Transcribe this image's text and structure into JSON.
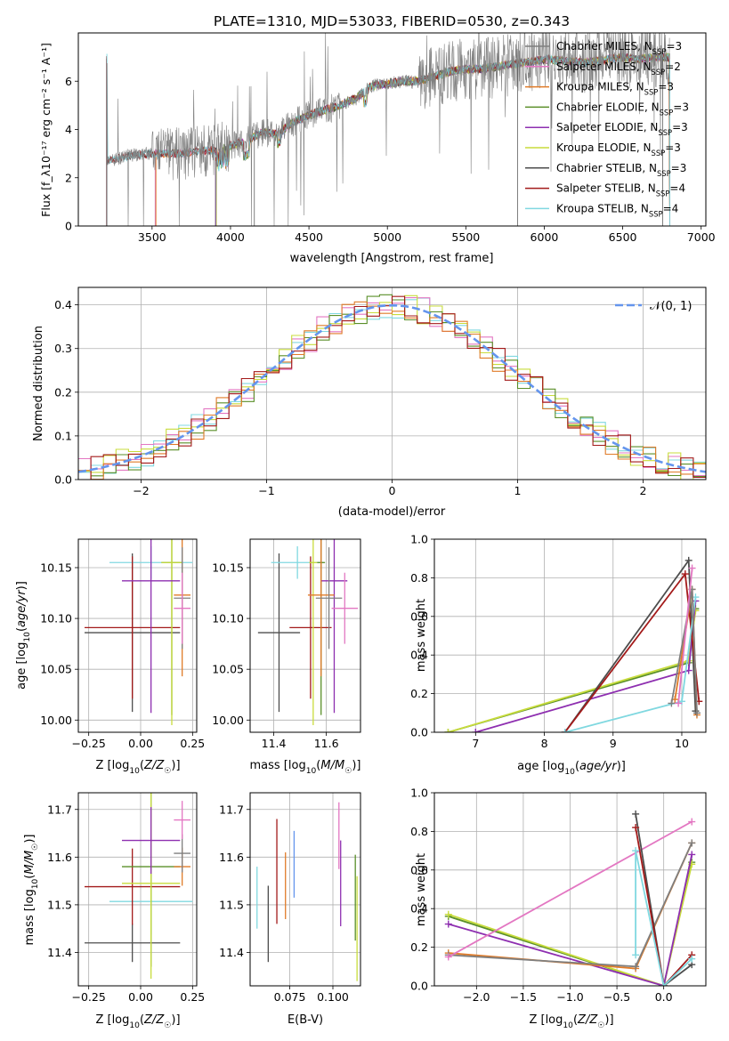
{
  "figure_title": "PLATE=1310, MJD=53033, FIBERID=0530, z=0.343",
  "colors": {
    "chabrier_miles": "#7f7f7f",
    "salpeter_miles": "#e377c2",
    "kroupa_miles": "#e07b28",
    "chabrier_elodie": "#5a8f29",
    "salpeter_elodie": "#8e2fb0",
    "kroupa_elodie": "#c8dc3c",
    "chabrier_stelib": "#4d4d4d",
    "salpeter_stelib": "#a31a1a",
    "kroupa_stelib": "#80d8e0",
    "normal_curve": "#6495ed",
    "data_spectrum": "#808080"
  },
  "chart_data": [
    {
      "id": "spectrum",
      "type": "line",
      "title": "PLATE=1310, MJD=53033, FIBERID=0530, z=0.343",
      "xlabel": "wavelength [Angstrom, rest frame]",
      "ylabel": "Flux [f_λ10⁻¹⁷ erg cm⁻² s⁻¹ A⁻¹]",
      "xlim": [
        3030,
        7030
      ],
      "ylim": [
        0,
        8
      ],
      "xticks": [
        3500,
        4000,
        4500,
        5000,
        5500,
        6000,
        6500,
        7000
      ],
      "yticks": [
        0,
        2,
        4,
        6
      ],
      "grid": false,
      "legend_position": "top-right",
      "continuum": [
        [
          3215,
          2.7
        ],
        [
          3300,
          2.85
        ],
        [
          3400,
          2.95
        ],
        [
          3500,
          3.0
        ],
        [
          3600,
          3.0
        ],
        [
          3700,
          3.0
        ],
        [
          3800,
          3.1
        ],
        [
          3900,
          3.15
        ],
        [
          4000,
          3.35
        ],
        [
          4100,
          3.5
        ],
        [
          4200,
          3.9
        ],
        [
          4300,
          3.8
        ],
        [
          4400,
          4.3
        ],
        [
          4500,
          4.6
        ],
        [
          4600,
          4.8
        ],
        [
          4700,
          5.0
        ],
        [
          4800,
          5.3
        ],
        [
          4900,
          5.8
        ],
        [
          5000,
          5.9
        ],
        [
          5100,
          6.0
        ],
        [
          5200,
          6.0
        ],
        [
          5300,
          6.2
        ],
        [
          5400,
          6.4
        ],
        [
          5500,
          6.5
        ],
        [
          5600,
          6.5
        ],
        [
          5700,
          6.6
        ],
        [
          5800,
          6.7
        ],
        [
          5900,
          6.8
        ],
        [
          6000,
          6.9
        ],
        [
          6100,
          6.85
        ],
        [
          6200,
          6.8
        ],
        [
          6300,
          6.8
        ],
        [
          6400,
          6.9
        ],
        [
          6500,
          7.0
        ],
        [
          6600,
          6.9
        ],
        [
          6700,
          7.0
        ],
        [
          6800,
          7.0
        ]
      ],
      "series": [
        {
          "name": "Chabrier MILES, N_SSP=3",
          "color": "#7f7f7f",
          "start": 3520
        },
        {
          "name": "Salpeter MILES, N_SSP=2",
          "color": "#e377c2",
          "start": 3520
        },
        {
          "name": "Kroupa MILES, N_SSP=3",
          "color": "#e07b28",
          "start": 3525
        },
        {
          "name": "Chabrier ELODIE, N_SSP=3",
          "color": "#5a8f29",
          "start": 3905
        },
        {
          "name": "Salpeter ELODIE, N_SSP=3",
          "color": "#8e2fb0",
          "start": 3905
        },
        {
          "name": "Kroupa ELODIE, N_SSP=3",
          "color": "#c8dc3c",
          "start": 3910
        },
        {
          "name": "Chabrier STELIB, N_SSP=3",
          "color": "#4d4d4d",
          "start": 3210
        },
        {
          "name": "Salpeter STELIB, N_SSP=4",
          "color": "#a31a1a",
          "start": 3210
        },
        {
          "name": "Kroupa STELIB, N_SSP=4",
          "color": "#80d8e0",
          "start": 3212
        }
      ]
    },
    {
      "id": "residuals",
      "type": "histogram",
      "xlabel": "(data-model)/error",
      "ylabel": "Normed distribution",
      "xlim": [
        -2.5,
        2.5
      ],
      "ylim": [
        0,
        0.44
      ],
      "xticks": [
        -2,
        -1,
        0,
        1,
        2
      ],
      "yticks": [
        0.0,
        0.1,
        0.2,
        0.3,
        0.4
      ],
      "grid": true,
      "legend_position": "top-right",
      "legend": "𝒩(0, 1)",
      "bin_width": 0.1
    },
    {
      "id": "age_vs_Z",
      "type": "errorbar",
      "xlabel": "Z [log10(Z/Z☉)]",
      "ylabel": "age  [log10(age/yr)]",
      "xlim": [
        -0.3,
        0.27
      ],
      "ylim": [
        9.988,
        10.178
      ],
      "xticks": [
        -0.25,
        0.0,
        0.25
      ],
      "yticks": [
        10.0,
        10.05,
        10.1,
        10.15
      ],
      "grid": true,
      "points": [
        {
          "color": "#4d4d4d",
          "x": -0.04,
          "xerr": 0.23,
          "y": 10.086,
          "yerr": 0.078
        },
        {
          "color": "#80d8e0",
          "x": 0.05,
          "xerr": 0.2,
          "y": 10.155,
          "yerr": 0.016
        },
        {
          "color": "#a31a1a",
          "x": -0.04,
          "xerr": 0.23,
          "y": 10.091,
          "yerr": 0.07
        },
        {
          "color": "#5a8f29",
          "x": 0.15,
          "xerr": 0.05,
          "y": 10.155,
          "yerr": 0.15
        },
        {
          "color": "#c8dc3c",
          "x": 0.15,
          "xerr": 0.05,
          "y": 10.155,
          "yerr": 0.16
        },
        {
          "color": "#8e2fb0",
          "x": 0.05,
          "xerr": 0.14,
          "y": 10.137,
          "yerr": 0.13
        },
        {
          "color": "#e07b28",
          "x": 0.2,
          "xerr": 0.04,
          "y": 10.123,
          "yerr": 0.08
        },
        {
          "color": "#7f7f7f",
          "x": 0.2,
          "xerr": 0.04,
          "y": 10.12,
          "yerr": 0.05
        },
        {
          "color": "#e377c2",
          "x": 0.2,
          "xerr": 0.04,
          "y": 10.11,
          "yerr": 0.035
        }
      ]
    },
    {
      "id": "age_vs_mass",
      "type": "errorbar",
      "xlabel": "mass [log10(M/M☉)]",
      "xlim": [
        11.31,
        11.73
      ],
      "ylim": [
        9.988,
        10.178
      ],
      "xticks": [
        11.4,
        11.6
      ],
      "yticks": [
        10.0,
        10.05,
        10.1,
        10.15
      ],
      "grid": true,
      "points": [
        {
          "color": "#4d4d4d",
          "x": 11.42,
          "xerr": 0.08,
          "y": 10.086,
          "yerr": 0.078
        },
        {
          "color": "#80d8e0",
          "x": 11.49,
          "xerr": 0.1,
          "y": 10.155,
          "yerr": 0.016
        },
        {
          "color": "#a31a1a",
          "x": 11.54,
          "xerr": 0.08,
          "y": 10.091,
          "yerr": 0.07
        },
        {
          "color": "#5a8f29",
          "x": 11.58,
          "xerr": 0.015,
          "y": 10.155,
          "yerr": 0.15
        },
        {
          "color": "#c8dc3c",
          "x": 11.55,
          "xerr": 0.015,
          "y": 10.155,
          "yerr": 0.16
        },
        {
          "color": "#8e2fb0",
          "x": 11.63,
          "xerr": 0.05,
          "y": 10.137,
          "yerr": 0.13
        },
        {
          "color": "#e07b28",
          "x": 11.58,
          "xerr": 0.05,
          "y": 10.123,
          "yerr": 0.08
        },
        {
          "color": "#7f7f7f",
          "x": 11.61,
          "xerr": 0.05,
          "y": 10.12,
          "yerr": 0.05
        },
        {
          "color": "#e377c2",
          "x": 11.67,
          "xerr": 0.05,
          "y": 10.11,
          "yerr": 0.035
        }
      ]
    },
    {
      "id": "mass_weight_vs_age",
      "type": "line",
      "xlabel": "age  [log10(age/yr)]",
      "ylabel": "mass weight",
      "xlim": [
        6.4,
        10.35
      ],
      "ylim": [
        0,
        1
      ],
      "xticks": [
        7,
        8,
        9,
        10
      ],
      "yticks": [
        0.0,
        0.2,
        0.4,
        0.6,
        0.8,
        1.0
      ],
      "grid": true,
      "series": [
        {
          "color": "#5a8f29",
          "points": [
            [
              6.6,
              0.0
            ],
            [
              10.1,
              0.36
            ],
            [
              10.2,
              0.64
            ]
          ]
        },
        {
          "color": "#c8dc3c",
          "points": [
            [
              6.6,
              0.0
            ],
            [
              10.1,
              0.37
            ],
            [
              10.2,
              0.63
            ]
          ]
        },
        {
          "color": "#8e2fb0",
          "points": [
            [
              7.0,
              0.0
            ],
            [
              10.1,
              0.32
            ],
            [
              10.2,
              0.68
            ]
          ]
        },
        {
          "color": "#4d4d4d",
          "points": [
            [
              8.3,
              0.0
            ],
            [
              10.1,
              0.89
            ],
            [
              10.2,
              0.11
            ]
          ]
        },
        {
          "color": "#a31a1a",
          "points": [
            [
              8.3,
              0.0
            ],
            [
              10.05,
              0.82
            ],
            [
              10.25,
              0.16
            ]
          ]
        },
        {
          "color": "#80d8e0",
          "points": [
            [
              8.3,
              0.0
            ],
            [
              10.0,
              0.16
            ],
            [
              10.2,
              0.7
            ]
          ]
        },
        {
          "color": "#e07b28",
          "points": [
            [
              9.9,
              0.17
            ],
            [
              10.15,
              0.74
            ],
            [
              10.22,
              0.09
            ]
          ]
        },
        {
          "color": "#7f7f7f",
          "points": [
            [
              9.85,
              0.15
            ],
            [
              10.15,
              0.74
            ],
            [
              10.22,
              0.1
            ]
          ]
        },
        {
          "color": "#e377c2",
          "points": [
            [
              9.95,
              0.15
            ],
            [
              10.15,
              0.85
            ]
          ]
        }
      ]
    },
    {
      "id": "mass_vs_Z",
      "type": "errorbar",
      "xlabel": "Z [log10(Z/Z☉)]",
      "ylabel": "mass [log10(M/M☉)]",
      "xlim": [
        -0.3,
        0.27
      ],
      "ylim": [
        11.33,
        11.735
      ],
      "xticks": [
        -0.25,
        0.0,
        0.25
      ],
      "yticks": [
        11.4,
        11.5,
        11.6,
        11.7
      ],
      "grid": true,
      "points": [
        {
          "color": "#4d4d4d",
          "x": -0.04,
          "xerr": 0.23,
          "y": 11.42,
          "yerr": 0.04
        },
        {
          "color": "#80d8e0",
          "x": 0.05,
          "xerr": 0.2,
          "y": 11.507,
          "yerr": 0.07
        },
        {
          "color": "#a31a1a",
          "x": -0.04,
          "xerr": 0.23,
          "y": 11.538,
          "yerr": 0.08
        },
        {
          "color": "#5a8f29",
          "x": 0.05,
          "xerr": 0.14,
          "y": 11.58,
          "yerr": 0.21
        },
        {
          "color": "#c8dc3c",
          "x": 0.05,
          "xerr": 0.14,
          "y": 11.545,
          "yerr": 0.2
        },
        {
          "color": "#8e2fb0",
          "x": 0.05,
          "xerr": 0.14,
          "y": 11.635,
          "yerr": 0.07
        },
        {
          "color": "#e07b28",
          "x": 0.2,
          "xerr": 0.04,
          "y": 11.58,
          "yerr": 0.04
        },
        {
          "color": "#7f7f7f",
          "x": 0.2,
          "xerr": 0.04,
          "y": 11.608,
          "yerr": 0.04
        },
        {
          "color": "#e377c2",
          "x": 0.2,
          "xerr": 0.04,
          "y": 11.678,
          "yerr": 0.04
        }
      ]
    },
    {
      "id": "mass_vs_ebv",
      "type": "errorbar",
      "xlabel": "E(B-V)",
      "xlim": [
        0.052,
        0.116
      ],
      "ylim": [
        11.33,
        11.735
      ],
      "xticks": [
        0.075,
        0.1
      ],
      "xticklabels": [
        "0.075",
        "0.100"
      ],
      "yticks": [
        11.4,
        11.5,
        11.6,
        11.7
      ],
      "grid": true,
      "points": [
        {
          "color": "#80d8e0",
          "x": 0.056,
          "y": 11.515,
          "yerr": 0.065
        },
        {
          "color": "#4d4d4d",
          "x": 0.0625,
          "y": 11.46,
          "yerr": 0.08
        },
        {
          "color": "#a31a1a",
          "x": 0.0675,
          "y": 11.57,
          "yerr": 0.11
        },
        {
          "color": "#e07b28",
          "x": 0.0725,
          "y": 11.54,
          "yerr": 0.07
        },
        {
          "color": "#6495ed",
          "x": 0.0775,
          "y": 11.585,
          "yerr": 0.07
        },
        {
          "color": "#e377c2",
          "x": 0.1035,
          "y": 11.645,
          "yerr": 0.07
        },
        {
          "color": "#8e2fb0",
          "x": 0.1045,
          "y": 11.545,
          "yerr": 0.09
        },
        {
          "color": "#5a8f29",
          "x": 0.113,
          "y": 11.515,
          "yerr": 0.09
        },
        {
          "color": "#c8dc3c",
          "x": 0.114,
          "y": 11.45,
          "yerr": 0.11
        }
      ]
    },
    {
      "id": "mass_weight_vs_Z",
      "type": "line",
      "xlabel": "Z [log10(Z/Z☉)]",
      "ylabel": "mass weight",
      "xlim": [
        -2.45,
        0.45
      ],
      "ylim": [
        0,
        1
      ],
      "xticks": [
        -2.0,
        -1.5,
        -1.0,
        -0.5,
        0.0
      ],
      "yticks": [
        0.0,
        0.2,
        0.4,
        0.6,
        0.8,
        1.0
      ],
      "grid": true,
      "series": [
        {
          "color": "#5a8f29",
          "points": [
            [
              -2.3,
              0.36
            ],
            [
              0.0,
              0.0
            ],
            [
              0.3,
              0.64
            ]
          ]
        },
        {
          "color": "#c8dc3c",
          "points": [
            [
              -2.3,
              0.37
            ],
            [
              0.0,
              0.0
            ],
            [
              0.3,
              0.63
            ]
          ]
        },
        {
          "color": "#8e2fb0",
          "points": [
            [
              -2.3,
              0.32
            ],
            [
              0.0,
              0.0
            ],
            [
              0.3,
              0.68
            ]
          ]
        },
        {
          "color": "#e07b28",
          "points": [
            [
              -2.3,
              0.17
            ],
            [
              -0.3,
              0.09
            ],
            [
              0.3,
              0.74
            ]
          ]
        },
        {
          "color": "#7f7f7f",
          "points": [
            [
              -2.3,
              0.16
            ],
            [
              -0.3,
              0.1
            ],
            [
              0.3,
              0.74
            ]
          ]
        },
        {
          "color": "#e377c2",
          "points": [
            [
              -2.3,
              0.15
            ],
            [
              0.3,
              0.85
            ]
          ]
        },
        {
          "color": "#4d4d4d",
          "points": [
            [
              -0.3,
              0.89
            ],
            [
              0.0,
              0.0
            ],
            [
              0.3,
              0.11
            ]
          ]
        },
        {
          "color": "#a31a1a",
          "points": [
            [
              -0.3,
              0.82
            ],
            [
              0.0,
              0.0
            ],
            [
              0.3,
              0.16
            ]
          ]
        },
        {
          "color": "#80d8e0",
          "points": [
            [
              -0.3,
              0.16
            ],
            [
              -0.3,
              0.7
            ],
            [
              0.0,
              0.0
            ],
            [
              0.3,
              0.14
            ]
          ]
        }
      ]
    }
  ]
}
